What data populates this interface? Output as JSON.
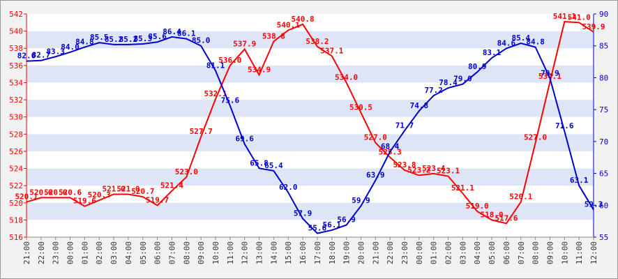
{
  "chart_data": {
    "type": "line",
    "categories": [
      "21:00",
      "22:00",
      "23:00",
      "00:00",
      "01:00",
      "02:00",
      "03:00",
      "04:00",
      "05:00",
      "06:00",
      "07:00",
      "08:00",
      "09:00",
      "10:00",
      "11:00",
      "12:00",
      "13:00",
      "14:00",
      "15:00",
      "16:00",
      "17:00",
      "18:00",
      "19:00",
      "20:00",
      "21:00",
      "22:00",
      "23:00",
      "00:00",
      "01:00",
      "02:00",
      "03:00",
      "04:00",
      "05:00",
      "06:00",
      "07:00",
      "08:00",
      "09:00",
      "10:00",
      "11:00",
      "12:00"
    ],
    "series": [
      {
        "color": "#ff0000",
        "axis": "y",
        "values": [
          520.1,
          520.6,
          520.6,
          520.6,
          519.6,
          520.3,
          521.0,
          521.0,
          520.7,
          519.7,
          521.4,
          523.0,
          527.7,
          532.1,
          536.0,
          537.9,
          534.9,
          538.8,
          540.1,
          540.8,
          538.2,
          537.1,
          534.0,
          530.5,
          527.0,
          525.3,
          523.8,
          523.2,
          523.4,
          523.1,
          521.1,
          519.0,
          518.0,
          517.6,
          520.1,
          527.0,
          534.1,
          541.1,
          541.0,
          539.9
        ],
        "value_labels": [
          "520.1",
          "520.6",
          "520.6",
          "520.6",
          "519.6",
          "520.3",
          "521.0",
          "521.0",
          "520.7",
          "519.7",
          "521.4",
          "523.0",
          "527.7",
          "532.1",
          "536.0",
          "537.9",
          "534.9",
          "538.8",
          "540.1",
          "540.8",
          "538.2",
          "537.1",
          "534.0",
          "530.5",
          "527.0",
          "525.3",
          "523.8",
          "523.2",
          "523.4",
          "523.1",
          "521.1",
          "519.0",
          "518.0",
          "517.6",
          "520.1",
          "527.0",
          "534.1",
          "541.1",
          "541.0",
          "539.9"
        ]
      },
      {
        "color": "#0000cc",
        "axis": "y2",
        "values": [
          82.6,
          82.7,
          83.3,
          84.0,
          84.8,
          85.5,
          85.2,
          85.2,
          85.3,
          85.6,
          86.4,
          86.1,
          85.0,
          81.1,
          75.6,
          69.6,
          65.8,
          65.4,
          62.0,
          57.9,
          55.6,
          56.1,
          56.9,
          59.9,
          63.9,
          68.4,
          71.7,
          74.8,
          77.2,
          78.4,
          79.0,
          80.9,
          83.1,
          84.6,
          85.4,
          84.8,
          79.9,
          71.6,
          63.1,
          59.3
        ],
        "value_labels": [
          "82.6",
          "82.7",
          "83.3",
          "84.0",
          "84.8",
          "85.5",
          "85.2",
          "85.2",
          "85.3",
          "85.6",
          "86.4",
          "86.1",
          "85.0",
          "81.1",
          "75.6",
          "69.6",
          "65.8",
          "65.4",
          "62.0",
          "57.9",
          "55.6",
          "56.1",
          "56.9",
          "59.9",
          "63.9",
          "68.4",
          "71.7",
          "74.8",
          "77.2",
          "78.4",
          "79.0",
          "80.9",
          "83.1",
          "84.6",
          "85.4",
          "84.8",
          "79.9",
          "71.6",
          "63.1",
          "59.3"
        ]
      }
    ],
    "ylim": [
      516,
      542
    ],
    "yticks": [
      516,
      518,
      520,
      522,
      524,
      526,
      528,
      530,
      532,
      534,
      536,
      538,
      540,
      542
    ],
    "y2lim": [
      55,
      90
    ],
    "y2ticks": [
      55,
      60,
      65,
      70,
      75,
      80,
      85,
      90
    ]
  }
}
